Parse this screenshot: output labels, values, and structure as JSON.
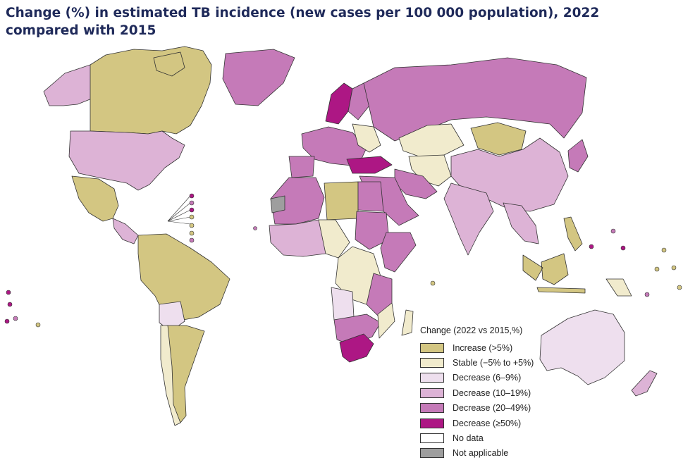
{
  "title": "Change (%) in estimated TB incidence (new cases per 100 000 population), 2022 compared with 2015",
  "colors": {
    "increase": "#d3c682",
    "stable": "#f1ebcd",
    "decrease_6_9": "#eedfee",
    "decrease_10_19": "#ddb3d6",
    "decrease_20_49": "#c57ab8",
    "decrease_50": "#ad1784",
    "no_data": "#ffffff",
    "not_applicable": "#9e9e9e",
    "border": "#333333",
    "title": "#1f2a5a"
  },
  "legend": {
    "title": "Change (2022 vs 2015,%)",
    "items": [
      {
        "label": "Increase (>5%)",
        "color": "#d3c682"
      },
      {
        "label": "Stable (−5% to +5%)",
        "color": "#f1ebcd"
      },
      {
        "label": "Decrease (6–9%)",
        "color": "#eedfee"
      },
      {
        "label": "Decrease (10–19%)",
        "color": "#ddb3d6"
      },
      {
        "label": "Decrease (20–49%)",
        "color": "#c57ab8"
      },
      {
        "label": "Decrease (≥50%)",
        "color": "#ad1784"
      },
      {
        "label": "No data",
        "color": "#ffffff"
      },
      {
        "label": "Not applicable",
        "color": "#9e9e9e"
      }
    ]
  }
}
